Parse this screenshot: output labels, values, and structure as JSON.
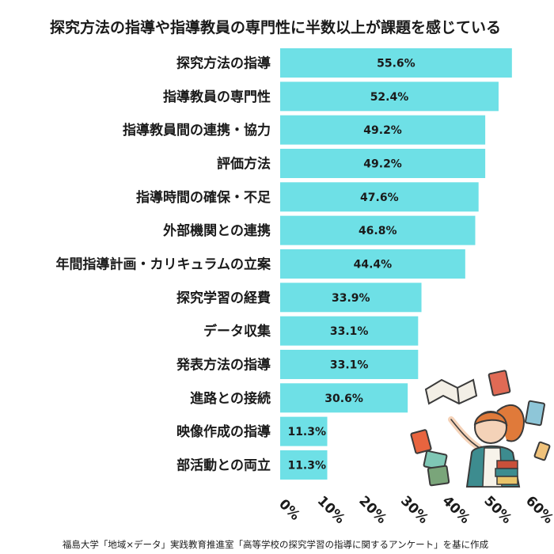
{
  "chart_data": {
    "type": "bar",
    "orientation": "horizontal",
    "title": "探究方法の指導や指導教員の専門性に半数以上が課題を感じている",
    "categories": [
      "探究方法の指導",
      "指導教員の専門性",
      "指導教員間の連携・協力",
      "評価方法",
      "指導時間の確保・不足",
      "外部機関との連携",
      "年間指導計画・カリキュラムの立案",
      "探究学習の経費",
      "データ収集",
      "発表方法の指導",
      "進路との接続",
      "映像作成の指導",
      "部活動との両立"
    ],
    "values": [
      55.6,
      52.4,
      49.2,
      49.2,
      47.6,
      46.8,
      44.4,
      33.9,
      33.1,
      33.1,
      30.6,
      11.3,
      11.3
    ],
    "value_labels": [
      "55.6%",
      "52.4%",
      "49.2%",
      "49.2%",
      "47.6%",
      "46.8%",
      "44.4%",
      "33.9%",
      "33.1%",
      "33.1%",
      "30.6%",
      "11.3%",
      "11.3%"
    ],
    "xlim": [
      0,
      60
    ],
    "ticks": [
      0,
      10,
      20,
      30,
      40,
      50,
      60
    ],
    "tick_labels": [
      "0%",
      "10%",
      "20%",
      "30%",
      "40%",
      "50%",
      "60%"
    ],
    "xlabel": "",
    "ylabel": "",
    "grid": false,
    "bar_color": "#6ee0e6",
    "source": "福島大学「地域×データ」実践教育推進室「高等学校の探究学習の指導に関するアンケート」を基に作成"
  }
}
